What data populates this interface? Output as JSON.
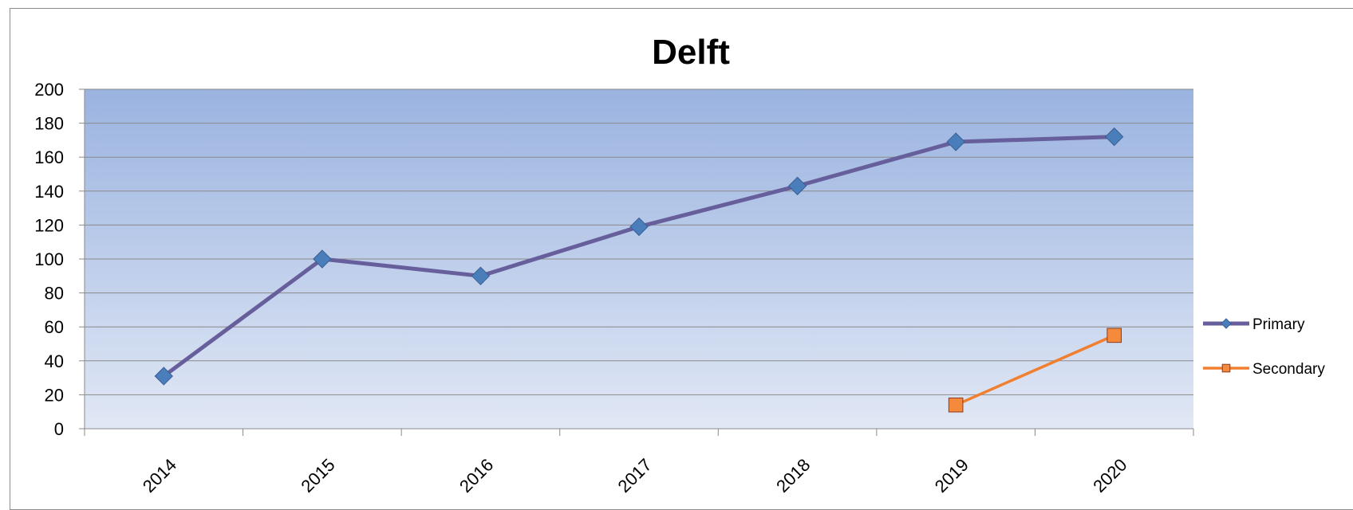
{
  "chart_data": {
    "type": "line",
    "title": "Delft",
    "xlabel": "",
    "ylabel": "",
    "categories": [
      "2014",
      "2015",
      "2016",
      "2017",
      "2018",
      "2019",
      "2020"
    ],
    "ylim": [
      0,
      200
    ],
    "yticks": [
      "0",
      "20",
      "40",
      "60",
      "80",
      "100",
      "120",
      "140",
      "160",
      "180",
      "200"
    ],
    "grid": true,
    "legend_position": "right",
    "series": [
      {
        "name": "Primary",
        "values": [
          31,
          100,
          90,
          119,
          143,
          169,
          172
        ],
        "color": "#665f9b",
        "marker": "diamond",
        "marker_color": "#4a7ebb"
      },
      {
        "name": "Secondary",
        "values": [
          null,
          null,
          null,
          null,
          null,
          14,
          55
        ],
        "color": "#f07f2f",
        "marker": "square",
        "marker_color": "#f68a3c"
      }
    ],
    "plot_background": [
      "#9ab3e0",
      "#e1e8f5"
    ]
  }
}
